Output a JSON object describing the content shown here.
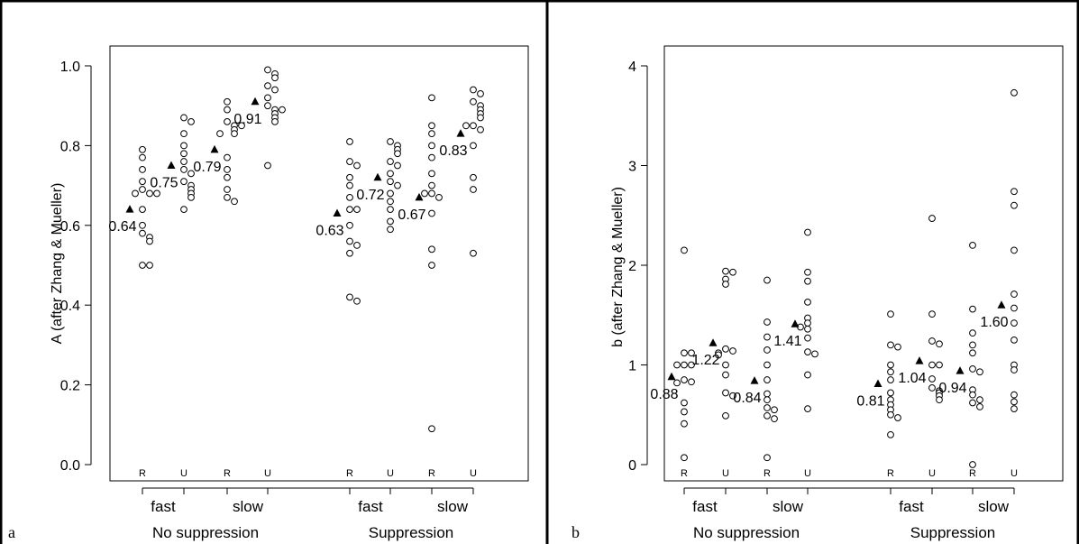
{
  "chart_data": [
    {
      "type": "scatter",
      "panel_label": "a",
      "ylabel": "A (after Zhang & Mueller)",
      "ylim": [
        -0.02,
        1.05
      ],
      "yticks": [
        "0.0",
        "0.2",
        "0.4",
        "0.6",
        "0.8",
        "1.0"
      ],
      "ytick_values": [
        0.0,
        0.2,
        0.4,
        0.6,
        0.8,
        1.0
      ],
      "speed_labels": [
        "fast",
        "slow",
        "fast",
        "slow"
      ],
      "group_labels": [
        "No suppression",
        "Suppression"
      ],
      "categories": [
        "R",
        "U",
        "R",
        "U",
        "R",
        "U",
        "R",
        "U"
      ],
      "means": [
        0.64,
        0.75,
        0.79,
        0.91,
        0.63,
        0.72,
        0.67,
        0.83
      ],
      "mean_labels": [
        "0.64",
        "0.75",
        "0.79",
        "0.91",
        "0.63",
        "0.72",
        "0.67",
        "0.83"
      ],
      "points": [
        [
          0.79,
          0.77,
          0.74,
          0.71,
          0.69,
          0.68,
          0.68,
          0.64,
          0.6,
          0.58,
          0.57,
          0.56,
          0.5,
          0.5,
          0.68
        ],
        [
          0.87,
          0.86,
          0.83,
          0.8,
          0.78,
          0.76,
          0.74,
          0.73,
          0.71,
          0.7,
          0.69,
          0.68,
          0.67,
          0.64
        ],
        [
          0.91,
          0.89,
          0.86,
          0.85,
          0.84,
          0.83,
          0.77,
          0.74,
          0.72,
          0.69,
          0.67,
          0.66,
          0.85,
          0.83
        ],
        [
          0.99,
          0.98,
          0.97,
          0.95,
          0.94,
          0.92,
          0.9,
          0.89,
          0.88,
          0.87,
          0.86,
          0.75,
          0.89
        ],
        [
          0.81,
          0.76,
          0.75,
          0.72,
          0.7,
          0.67,
          0.64,
          0.64,
          0.6,
          0.56,
          0.55,
          0.53,
          0.42,
          0.41
        ],
        [
          0.81,
          0.8,
          0.79,
          0.78,
          0.76,
          0.75,
          0.73,
          0.71,
          0.7,
          0.68,
          0.66,
          0.64,
          0.61,
          0.59
        ],
        [
          0.92,
          0.85,
          0.83,
          0.8,
          0.77,
          0.73,
          0.7,
          0.68,
          0.67,
          0.63,
          0.54,
          0.5,
          0.09,
          0.68
        ],
        [
          0.94,
          0.93,
          0.91,
          0.9,
          0.89,
          0.88,
          0.87,
          0.85,
          0.84,
          0.8,
          0.72,
          0.69,
          0.53,
          0.85
        ]
      ]
    },
    {
      "type": "scatter",
      "panel_label": "b",
      "ylabel": "b (after Zhang & Mueller)",
      "ylim": [
        -0.05,
        4.15
      ],
      "yticks": [
        "0",
        "1",
        "2",
        "3",
        "4"
      ],
      "ytick_values": [
        0,
        1,
        2,
        3,
        4
      ],
      "speed_labels": [
        "fast",
        "slow",
        "fast",
        "slow"
      ],
      "group_labels": [
        "No suppression",
        "Suppression"
      ],
      "categories": [
        "R",
        "U",
        "R",
        "U",
        "R",
        "U",
        "R",
        "U"
      ],
      "means": [
        0.88,
        1.22,
        0.84,
        1.41,
        0.81,
        1.04,
        0.94,
        1.6
      ],
      "mean_labels": [
        "0.88",
        "1.22",
        "0.84",
        "1.41",
        "0.81",
        "1.04",
        "0.94",
        "1.60"
      ],
      "points": [
        [
          2.15,
          1.12,
          1.12,
          1.0,
          1.0,
          0.85,
          0.83,
          0.82,
          0.62,
          0.53,
          0.41,
          0.07,
          1.0
        ],
        [
          1.94,
          1.93,
          1.86,
          1.81,
          1.16,
          1.14,
          1.12,
          1.1,
          1.0,
          0.9,
          0.72,
          0.69,
          0.49
        ],
        [
          1.85,
          1.43,
          1.28,
          1.15,
          1.0,
          0.85,
          0.71,
          0.65,
          0.57,
          0.55,
          0.49,
          0.46,
          0.07
        ],
        [
          2.33,
          1.93,
          1.84,
          1.63,
          1.47,
          1.42,
          1.36,
          1.27,
          1.13,
          1.11,
          0.9,
          0.56,
          1.38
        ],
        [
          1.51,
          1.2,
          1.18,
          1.0,
          0.93,
          0.85,
          0.72,
          0.65,
          0.6,
          0.55,
          0.5,
          0.47,
          0.3
        ],
        [
          2.47,
          1.51,
          1.24,
          1.21,
          1.0,
          0.86,
          0.77,
          0.74,
          0.72,
          0.69,
          0.65,
          1.0
        ],
        [
          2.2,
          1.56,
          1.32,
          1.2,
          1.12,
          0.96,
          0.93,
          0.75,
          0.7,
          0.62,
          0.58,
          0.0,
          0.65
        ],
        [
          3.73,
          2.74,
          2.6,
          2.15,
          1.71,
          1.57,
          1.42,
          1.25,
          1.0,
          0.95,
          0.7,
          0.63,
          0.56
        ]
      ]
    }
  ]
}
